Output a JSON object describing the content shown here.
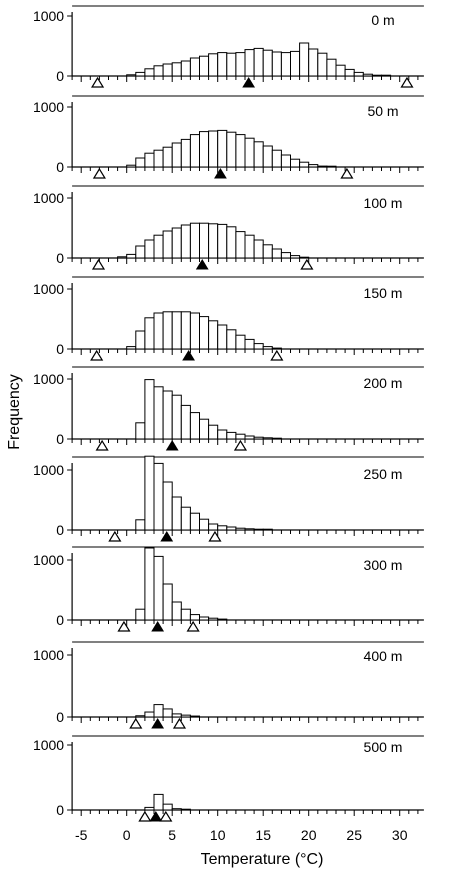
{
  "chart_data": {
    "type": "bar",
    "xlabel": "Temperature (°C)",
    "ylabel": "Frequency",
    "xlim": [
      -6,
      32
    ],
    "ylim": [
      0,
      1100
    ],
    "x_ticks": [
      "-5",
      "0",
      "5",
      "10",
      "15",
      "20",
      "25",
      "30"
    ],
    "y_ticks": [
      "0",
      "1000"
    ],
    "bin_width": 1,
    "legend": "none",
    "panels": [
      {
        "label": "0 m",
        "bins": [
          [
            0,
            20
          ],
          [
            1,
            60
          ],
          [
            2,
            120
          ],
          [
            3,
            170
          ],
          [
            4,
            200
          ],
          [
            5,
            220
          ],
          [
            6,
            250
          ],
          [
            7,
            300
          ],
          [
            8,
            330
          ],
          [
            9,
            370
          ],
          [
            10,
            390
          ],
          [
            11,
            380
          ],
          [
            12,
            390
          ],
          [
            13,
            440
          ],
          [
            14,
            460
          ],
          [
            15,
            430
          ],
          [
            16,
            400
          ],
          [
            17,
            390
          ],
          [
            18,
            410
          ],
          [
            19,
            550
          ],
          [
            20,
            450
          ],
          [
            21,
            380
          ],
          [
            22,
            280
          ],
          [
            23,
            180
          ],
          [
            24,
            110
          ],
          [
            25,
            60
          ],
          [
            26,
            30
          ],
          [
            27,
            10
          ],
          [
            28,
            5
          ]
        ],
        "open_markers": [
          -3.2,
          30.8
        ],
        "filled_marker": 13.4
      },
      {
        "label": "50 m",
        "bins": [
          [
            0,
            30
          ],
          [
            1,
            150
          ],
          [
            2,
            230
          ],
          [
            3,
            280
          ],
          [
            4,
            330
          ],
          [
            5,
            400
          ],
          [
            6,
            460
          ],
          [
            7,
            540
          ],
          [
            8,
            590
          ],
          [
            9,
            600
          ],
          [
            10,
            610
          ],
          [
            11,
            580
          ],
          [
            12,
            540
          ],
          [
            13,
            480
          ],
          [
            14,
            420
          ],
          [
            15,
            350
          ],
          [
            16,
            280
          ],
          [
            17,
            200
          ],
          [
            18,
            130
          ],
          [
            19,
            80
          ],
          [
            20,
            40
          ],
          [
            21,
            15
          ],
          [
            22,
            5
          ]
        ],
        "open_markers": [
          -3.0,
          24.2
        ],
        "filled_marker": 10.3
      },
      {
        "label": "100 m",
        "bins": [
          [
            -1,
            20
          ],
          [
            0,
            60
          ],
          [
            1,
            200
          ],
          [
            2,
            300
          ],
          [
            3,
            380
          ],
          [
            4,
            450
          ],
          [
            5,
            500
          ],
          [
            6,
            550
          ],
          [
            7,
            580
          ],
          [
            8,
            580
          ],
          [
            9,
            570
          ],
          [
            10,
            560
          ],
          [
            11,
            520
          ],
          [
            12,
            440
          ],
          [
            13,
            380
          ],
          [
            14,
            300
          ],
          [
            15,
            220
          ],
          [
            16,
            150
          ],
          [
            17,
            90
          ],
          [
            18,
            40
          ],
          [
            19,
            10
          ]
        ],
        "open_markers": [
          -3.1,
          19.8
        ],
        "filled_marker": 8.3
      },
      {
        "label": "150 m",
        "bins": [
          [
            0,
            40
          ],
          [
            1,
            300
          ],
          [
            2,
            520
          ],
          [
            3,
            600
          ],
          [
            4,
            620
          ],
          [
            5,
            620
          ],
          [
            6,
            620
          ],
          [
            7,
            600
          ],
          [
            8,
            540
          ],
          [
            9,
            470
          ],
          [
            10,
            400
          ],
          [
            11,
            320
          ],
          [
            12,
            230
          ],
          [
            13,
            160
          ],
          [
            14,
            90
          ],
          [
            15,
            40
          ],
          [
            16,
            15
          ]
        ],
        "open_markers": [
          -3.3,
          16.5
        ],
        "filled_marker": 6.8
      },
      {
        "label": "200 m",
        "bins": [
          [
            1,
            270
          ],
          [
            2,
            990
          ],
          [
            3,
            870
          ],
          [
            4,
            800
          ],
          [
            5,
            730
          ],
          [
            6,
            560
          ],
          [
            7,
            440
          ],
          [
            8,
            330
          ],
          [
            9,
            230
          ],
          [
            10,
            150
          ],
          [
            11,
            110
          ],
          [
            12,
            80
          ],
          [
            13,
            50
          ],
          [
            14,
            30
          ],
          [
            15,
            20
          ],
          [
            16,
            10
          ]
        ],
        "open_markers": [
          -2.7,
          12.5
        ],
        "filled_marker": 5.0
      },
      {
        "label": "250 m",
        "bins": [
          [
            1,
            170
          ],
          [
            2,
            1230
          ],
          [
            3,
            1110
          ],
          [
            4,
            800
          ],
          [
            5,
            550
          ],
          [
            6,
            380
          ],
          [
            7,
            280
          ],
          [
            8,
            180
          ],
          [
            9,
            100
          ],
          [
            10,
            70
          ],
          [
            11,
            50
          ],
          [
            12,
            30
          ],
          [
            13,
            20
          ],
          [
            14,
            10
          ],
          [
            15,
            5
          ]
        ],
        "open_markers": [
          -1.3,
          9.7
        ],
        "filled_marker": 4.4
      },
      {
        "label": "300 m",
        "bins": [
          [
            1,
            180
          ],
          [
            2,
            1200
          ],
          [
            3,
            1060
          ],
          [
            4,
            600
          ],
          [
            5,
            300
          ],
          [
            6,
            180
          ],
          [
            7,
            90
          ],
          [
            8,
            50
          ],
          [
            9,
            30
          ],
          [
            10,
            15
          ]
        ],
        "open_markers": [
          -0.3,
          7.3
        ],
        "filled_marker": 3.4
      },
      {
        "label": "400 m",
        "bins": [
          [
            1,
            20
          ],
          [
            2,
            80
          ],
          [
            3,
            200
          ],
          [
            4,
            130
          ],
          [
            5,
            50
          ],
          [
            6,
            30
          ],
          [
            7,
            15
          ]
        ],
        "open_markers": [
          1.0,
          5.8
        ],
        "filled_marker": 3.4
      },
      {
        "label": "500 m",
        "bins": [
          [
            2,
            40
          ],
          [
            3,
            240
          ],
          [
            4,
            90
          ],
          [
            5,
            20
          ],
          [
            6,
            10
          ]
        ],
        "open_markers": [
          2.0,
          4.3
        ],
        "filled_marker": 3.2
      }
    ]
  }
}
